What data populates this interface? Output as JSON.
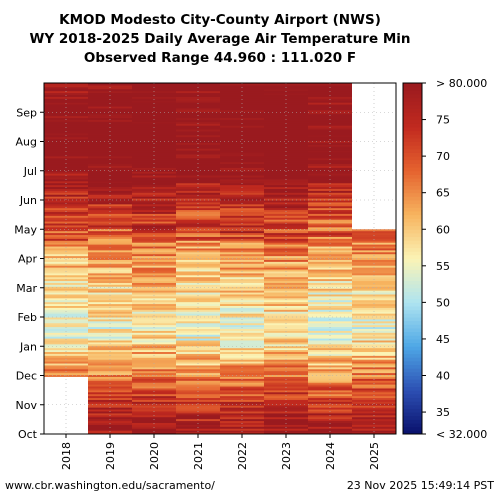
{
  "chart_data": {
    "type": "heatmap",
    "title_lines": [
      "KMOD Modesto City-County Airport (NWS)",
      "WY 2018-2025 Daily Average Air Temperature Min",
      "Observed Range 44.960 : 111.020 F"
    ],
    "x_categories": [
      "2018",
      "2019",
      "2020",
      "2021",
      "2022",
      "2023",
      "2024",
      "2025"
    ],
    "y_month_labels": [
      "Oct",
      "Nov",
      "Dec",
      "Jan",
      "Feb",
      "Mar",
      "Apr",
      "May",
      "Jun",
      "Jul",
      "Aug",
      "Sep"
    ],
    "colorbar": {
      "min": 32,
      "max": 80,
      "tick_values": [
        35,
        40,
        45,
        50,
        55,
        60,
        65,
        70,
        75
      ],
      "max_label": "> 80.000",
      "min_label": "< 32.000",
      "colors": [
        "#08106b",
        "#2c4fb3",
        "#4ea7e6",
        "#aee4f0",
        "#fbf4b6",
        "#f7b45f",
        "#e5632f",
        "#c12a1f",
        "#9a1a1f"
      ]
    },
    "missing_data": [
      {
        "year": "2018",
        "from_month": "Oct",
        "to_month": "Nov",
        "note": "no data through early Dec"
      },
      {
        "year": "2025",
        "from_month": "Jun",
        "to_month": "Sep",
        "note": "no data after late May"
      }
    ],
    "monthly_typical_value": {
      "Oct": 78,
      "Nov": 70,
      "Dec": 63,
      "Jan": 55,
      "Feb": 58,
      "Mar": 61,
      "Apr": 66,
      "May": 72,
      "Jun": 79,
      "Jul": 85,
      "Aug": 84,
      "Sep": 82
    }
  },
  "footer": {
    "source": "www.cbr.washington.edu/sacramento/",
    "timestamp": "23 Nov 2025 15:49:14 PST"
  }
}
